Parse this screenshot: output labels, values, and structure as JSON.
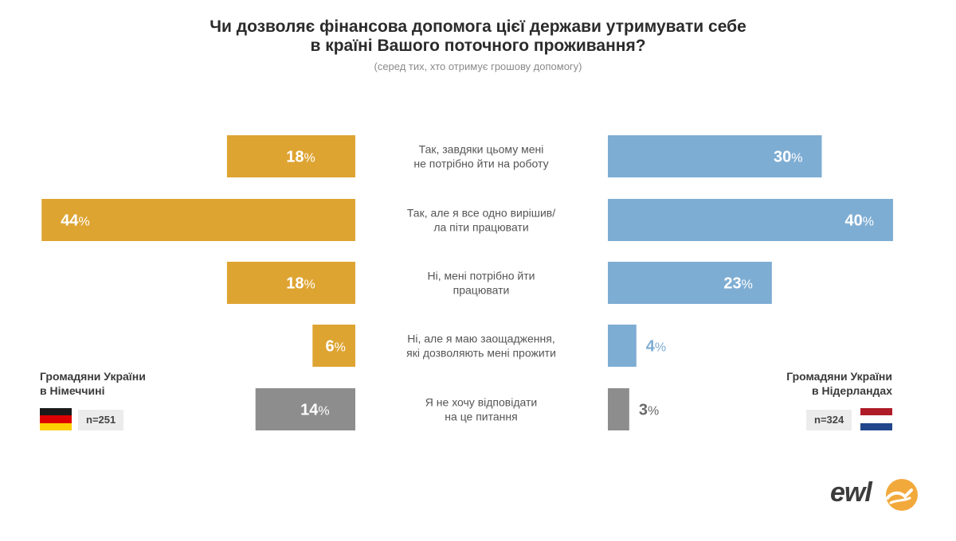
{
  "header": {
    "title_line1": "Чи дозволяє фінансова допомога цієї держави утримувати себе",
    "title_line2": "в країні Вашого поточного проживання?",
    "subtitle": "(серед тих, хто отримує грошову допомогу)"
  },
  "chart_data": {
    "type": "bar",
    "subtype": "butterfly",
    "title": "Чи дозволяє фінансова допомога цієї держави утримувати себе в країні Вашого поточного проживання?",
    "subtitle": "(серед тих, хто отримує грошову допомогу)",
    "categories": [
      [
        "Так, завдяки цьому мені",
        "не потрібно йти на роботу"
      ],
      [
        "Так, але я все одно вирішив/",
        "ла піти працювати"
      ],
      [
        "Ні, мені потрібно йти",
        "працювати"
      ],
      [
        "Ні, але я маю заощадження,",
        "які дозволяють мені прожити"
      ],
      [
        "Я не хочу відповідати",
        "на це питання"
      ]
    ],
    "series": [
      {
        "name": "Громадяни України в Німеччині",
        "values": [
          18,
          44,
          18,
          6,
          14
        ],
        "colors": [
          "#DEA432",
          "#DEA432",
          "#DEA432",
          "#DEA432",
          "#8D8D8D"
        ]
      },
      {
        "name": "Громадяни України в Нідерландах",
        "values": [
          30,
          40,
          23,
          4,
          3
        ],
        "colors": [
          "#7EADD3",
          "#7EADD3",
          "#7EADD3",
          "#7EADD3",
          "#8D8D8D"
        ]
      }
    ],
    "unit": "%",
    "grid": false
  },
  "groups": {
    "left_line1": "Громадяни України",
    "left_line2": "в Німеччині",
    "left_n": "n=251",
    "right_line1": "Громадяни України",
    "right_line2": "в Нідерландах",
    "right_n": "n=324"
  },
  "logo": {
    "text": "ewl"
  },
  "colors": {
    "orange": "#DEA432",
    "blue": "#7EADD3",
    "gray": "#8D8D8D",
    "outside_blue_label": "#7EADD3",
    "outside_gray_label": "#6a6a6a"
  }
}
